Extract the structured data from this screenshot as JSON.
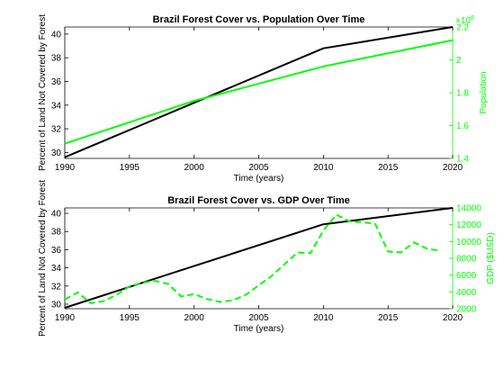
{
  "chart_data": [
    {
      "type": "line",
      "title": "Brazil Forest Cover vs. Population Over Time",
      "xlabel": "Time (years)",
      "ylabel": "Percent of Land Not Covered by Forest",
      "y2label": "Population",
      "y2_exponent_label": "×10",
      "y2_exponent_power": "8",
      "xlim": [
        1990,
        2020
      ],
      "ylim": [
        29.5,
        40.6
      ],
      "y2lim": [
        1.4,
        2.2
      ],
      "xticks": [
        1990,
        1995,
        2000,
        2005,
        2010,
        2015,
        2020
      ],
      "yticks": [
        30,
        32,
        34,
        36,
        38,
        40
      ],
      "y2ticks": [
        1.4,
        1.6,
        1.8,
        2,
        2.2
      ],
      "grid": false,
      "colors": {
        "left": "#000000",
        "right": "#00ff00"
      },
      "series": [
        {
          "axis": "left",
          "style": "solid",
          "x": [
            1990,
            2000,
            2010,
            2020
          ],
          "values": [
            29.6,
            34.2,
            38.8,
            40.6
          ]
        },
        {
          "axis": "right",
          "style": "solid",
          "x": [
            1990,
            2000,
            2010,
            2020
          ],
          "values": [
            1.49,
            1.75,
            1.96,
            2.12
          ]
        }
      ]
    },
    {
      "type": "line",
      "title": "Brazil Forest Cover vs. GDP Over Time",
      "xlabel": "Time (years)",
      "ylabel": "Percent of Land Not Covered by Forest",
      "y2label": "GDP ($USD)",
      "xlim": [
        1990,
        2020
      ],
      "ylim": [
        29.5,
        40.6
      ],
      "y2lim": [
        2000,
        14000
      ],
      "xticks": [
        1990,
        1995,
        2000,
        2005,
        2010,
        2015,
        2020
      ],
      "yticks": [
        30,
        32,
        34,
        36,
        38,
        40
      ],
      "y2ticks": [
        2000,
        4000,
        6000,
        8000,
        10000,
        12000,
        14000
      ],
      "grid": false,
      "colors": {
        "left": "#000000",
        "right": "#00ff00"
      },
      "series": [
        {
          "axis": "left",
          "style": "solid",
          "x": [
            1990,
            2000,
            2010,
            2020
          ],
          "values": [
            29.6,
            34.2,
            38.8,
            40.6
          ]
        },
        {
          "axis": "right",
          "style": "dashed",
          "x": [
            1990,
            1991,
            1992,
            1993,
            1994,
            1995,
            1996,
            1997,
            1998,
            1999,
            2000,
            2001,
            2002,
            2003,
            2004,
            2005,
            2006,
            2007,
            2008,
            2009,
            2010,
            2011,
            2012,
            2013,
            2014,
            2015,
            2016,
            2017,
            2018,
            2019
          ],
          "values": [
            3100,
            3950,
            2650,
            2900,
            3650,
            4650,
            5100,
            5300,
            4950,
            3450,
            3750,
            3150,
            2800,
            3000,
            3650,
            4800,
            5900,
            7300,
            8700,
            8600,
            11300,
            13200,
            12400,
            12300,
            12100,
            8800,
            8700,
            9900,
            9150,
            8900
          ]
        }
      ]
    }
  ]
}
